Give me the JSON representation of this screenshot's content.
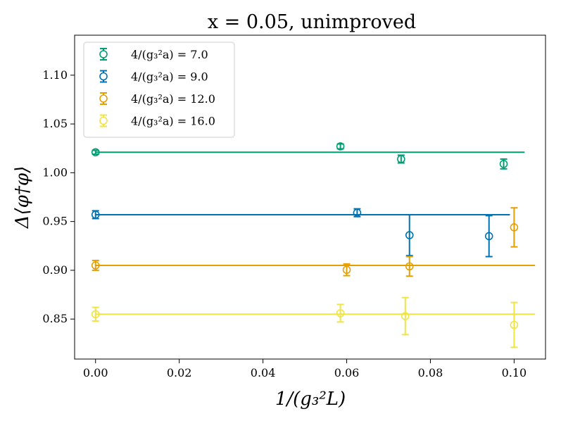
{
  "chart_data": {
    "type": "scatter",
    "title": "x = 0.05, unimproved",
    "xlabel": "1/(g₃²L)",
    "ylabel": "Δ⟨φ†φ⟩",
    "xlim": [
      -0.005,
      0.1075
    ],
    "ylim": [
      0.809,
      1.141
    ],
    "x_ticks": [
      0.0,
      0.02,
      0.04,
      0.06,
      0.08,
      0.1
    ],
    "x_tick_labels": [
      "0.00",
      "0.02",
      "0.04",
      "0.06",
      "0.08",
      "0.10"
    ],
    "y_ticks": [
      0.85,
      0.9,
      0.95,
      1.0,
      1.05,
      1.1
    ],
    "y_tick_labels": [
      "0.85",
      "0.90",
      "0.95",
      "1.00",
      "1.05",
      "1.10"
    ],
    "legend_position": "top-left",
    "series": [
      {
        "name": "4/(g₃²a) = 7.0",
        "color": "#009e73",
        "points": [
          {
            "x": 0.0,
            "y": 1.021,
            "err": 0.002
          },
          {
            "x": 0.0585,
            "y": 1.027,
            "err": 0.0025
          },
          {
            "x": 0.073,
            "y": 1.014,
            "err": 0.004
          },
          {
            "x": 0.0975,
            "y": 1.009,
            "err": 0.005
          }
        ],
        "fit": {
          "x": [
            0.0,
            0.1025
          ],
          "y": 1.021
        }
      },
      {
        "name": "4/(g₃²a) = 9.0",
        "color": "#0072b2",
        "points": [
          {
            "x": 0.0,
            "y": 0.957,
            "err": 0.004
          },
          {
            "x": 0.0625,
            "y": 0.959,
            "err": 0.004
          },
          {
            "x": 0.075,
            "y": 0.936,
            "err": 0.021
          },
          {
            "x": 0.094,
            "y": 0.935,
            "err": 0.021
          }
        ],
        "fit": {
          "x": [
            0.0,
            0.099
          ],
          "y": 0.957
        }
      },
      {
        "name": "4/(g₃²a) = 12.0",
        "color": "#e69f00",
        "points": [
          {
            "x": 0.0,
            "y": 0.905,
            "err": 0.005
          },
          {
            "x": 0.06,
            "y": 0.9005,
            "err": 0.006
          },
          {
            "x": 0.075,
            "y": 0.904,
            "err": 0.01
          },
          {
            "x": 0.1,
            "y": 0.944,
            "err": 0.02
          }
        ],
        "fit": {
          "x": [
            0.0,
            0.105
          ],
          "y": 0.905
        }
      },
      {
        "name": "4/(g₃²a) = 16.0",
        "color": "#f0e442",
        "points": [
          {
            "x": 0.0,
            "y": 0.855,
            "err": 0.007
          },
          {
            "x": 0.0585,
            "y": 0.856,
            "err": 0.009
          },
          {
            "x": 0.074,
            "y": 0.853,
            "err": 0.019
          },
          {
            "x": 0.1,
            "y": 0.844,
            "err": 0.023
          }
        ],
        "fit": {
          "x": [
            0.0,
            0.105
          ],
          "y": 0.855
        }
      }
    ]
  }
}
